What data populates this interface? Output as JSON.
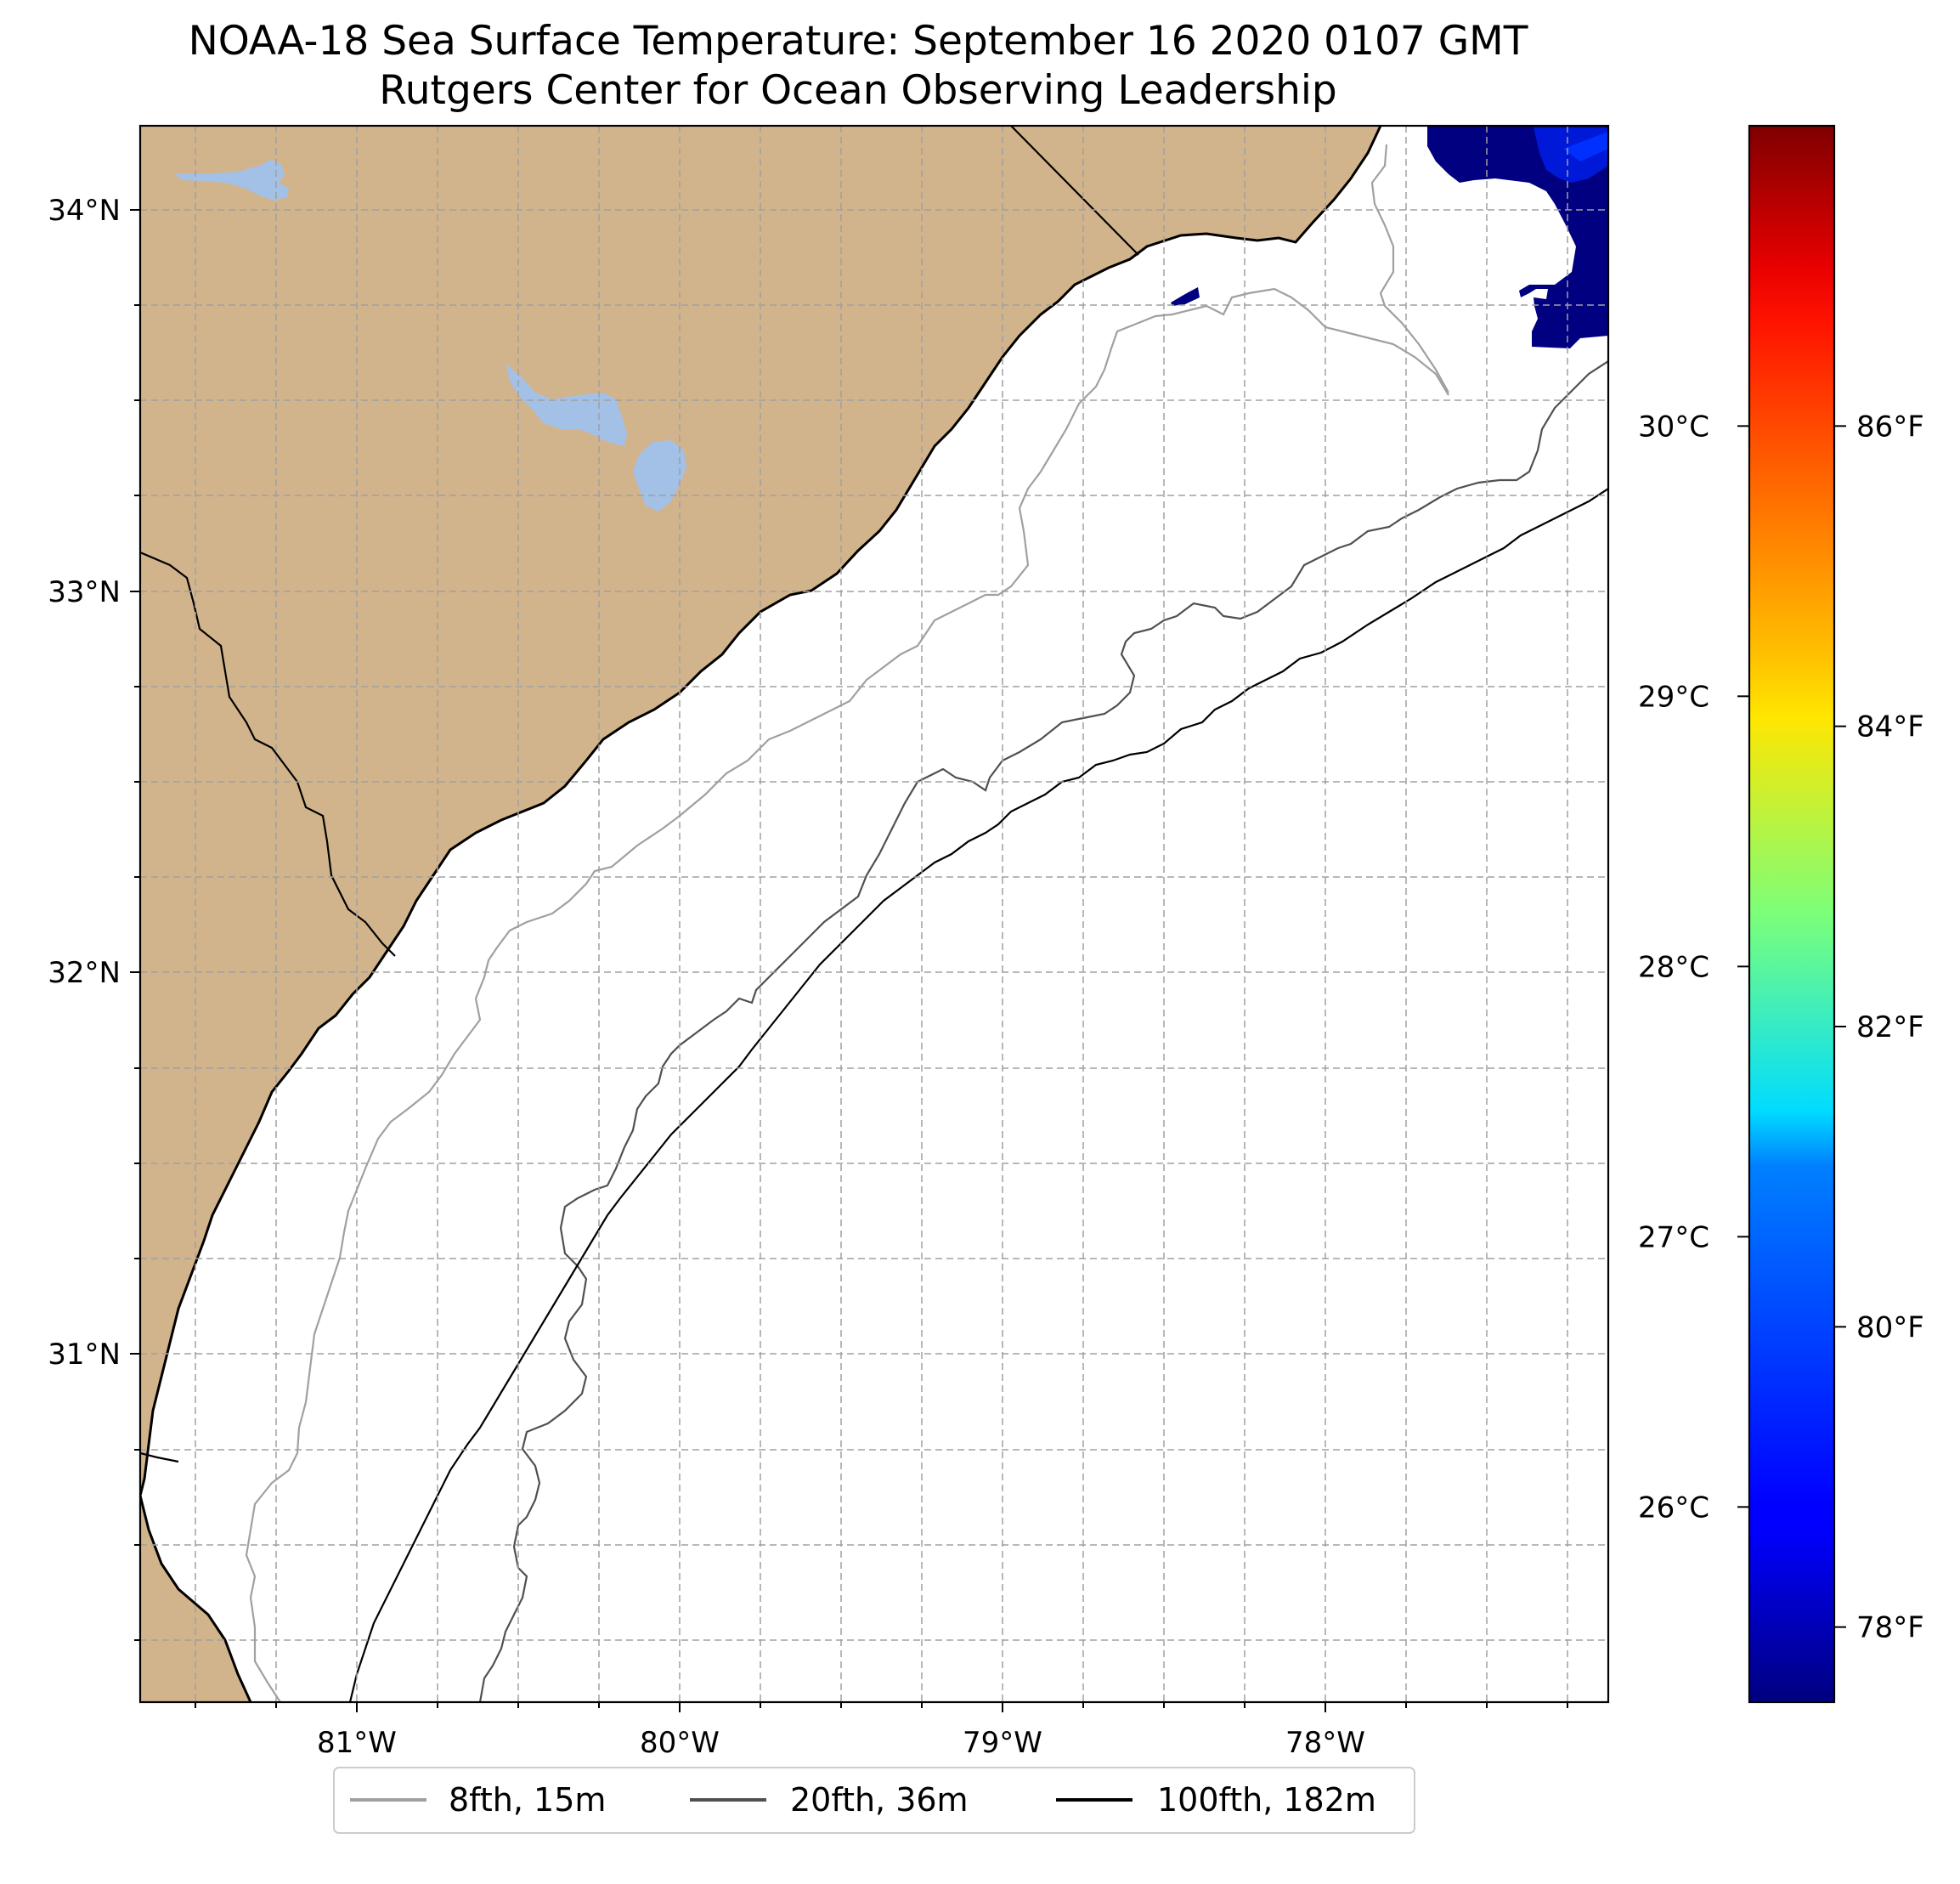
{
  "title": {
    "line1": "NOAA-18 Sea Surface Temperature: September 16 2020 0107 GMT",
    "line2": "Rutgers Center for Ocean Observing Leadership"
  },
  "map": {
    "extent": {
      "lon_min": -81.68,
      "lon_max": -77.12,
      "lat_min": 30.08,
      "lat_max": 34.22
    },
    "lat_ticks": [
      {
        "value": 34,
        "label": "34°N"
      },
      {
        "value": 33,
        "label": "33°N"
      },
      {
        "value": 32,
        "label": "32°N"
      },
      {
        "value": 31,
        "label": "31°N"
      }
    ],
    "lon_ticks": [
      {
        "value": -81,
        "label": "81°W"
      },
      {
        "value": -80,
        "label": "80°W"
      },
      {
        "value": -79,
        "label": "79°W"
      },
      {
        "value": -78,
        "label": "78°W"
      }
    ],
    "gridlines": true,
    "colors": {
      "land": "#d2b48c",
      "lakes": "#a3c0e6",
      "ocean": "#ffffff",
      "coastline": "#000000",
      "grid": "#a0a0a0",
      "sst_cold": "#000080",
      "sst_blue": "#0018d8"
    },
    "sst_present": "cold patch near Cape Fear (78°W–77.1°W, 33.6°N–34.2°N)"
  },
  "colorbar": {
    "colormap": "jet",
    "celsius_ticks": [
      {
        "value": 30,
        "label": "30°C"
      },
      {
        "value": 29,
        "label": "29°C"
      },
      {
        "value": 28,
        "label": "28°C"
      },
      {
        "value": 27,
        "label": "27°C"
      },
      {
        "value": 26,
        "label": "26°C"
      }
    ],
    "fahrenheit_ticks": [
      {
        "value": 86,
        "label": "86°F"
      },
      {
        "value": 84,
        "label": "84°F"
      },
      {
        "value": 82,
        "label": "82°F"
      },
      {
        "value": 80,
        "label": "80°F"
      },
      {
        "value": 78,
        "label": "78°F"
      }
    ],
    "range_f": [
      77.5,
      88.0
    ]
  },
  "legend": {
    "placement": "bottom-center",
    "items": [
      {
        "label": "8fth, 15m",
        "color": "#a0a0a0"
      },
      {
        "label": "20fth, 36m",
        "color": "#505050"
      },
      {
        "label": "100fth, 182m",
        "color": "#000000"
      }
    ]
  }
}
